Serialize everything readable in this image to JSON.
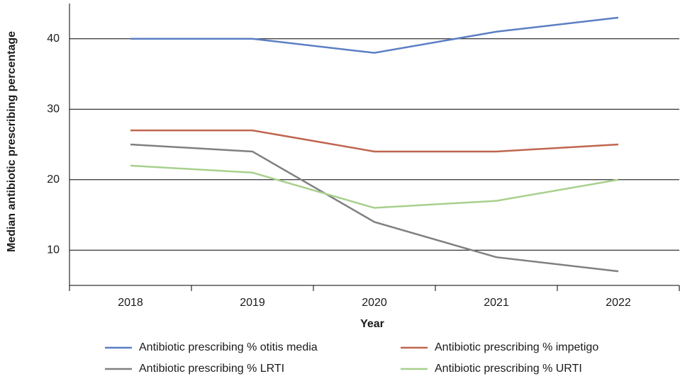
{
  "chart_data": {
    "type": "line",
    "x_label": "Year",
    "y_label": "Median antibiotic prescribing percentage",
    "categories": [
      "2018",
      "2019",
      "2020",
      "2021",
      "2022"
    ],
    "series": [
      {
        "name": "Antibiotic prescribing % otitis media",
        "color": "#5b7fc4",
        "values": [
          40,
          40,
          38,
          41,
          43
        ]
      },
      {
        "name": "Antibiotic prescribing % impetigo",
        "color": "#c0654f",
        "values": [
          27,
          27,
          24,
          24,
          25
        ]
      },
      {
        "name": "Antibiotic prescribing % LRTI",
        "color": "#808080",
        "values": [
          25,
          24,
          14,
          9,
          7
        ]
      },
      {
        "name": "Antibiotic prescribing % URTI",
        "color": "#a8d08d",
        "values": [
          22,
          21,
          16,
          17,
          20
        ]
      }
    ],
    "ylim": [
      5,
      45
    ],
    "yticks": [
      10,
      20,
      30,
      40
    ],
    "grid": true
  }
}
